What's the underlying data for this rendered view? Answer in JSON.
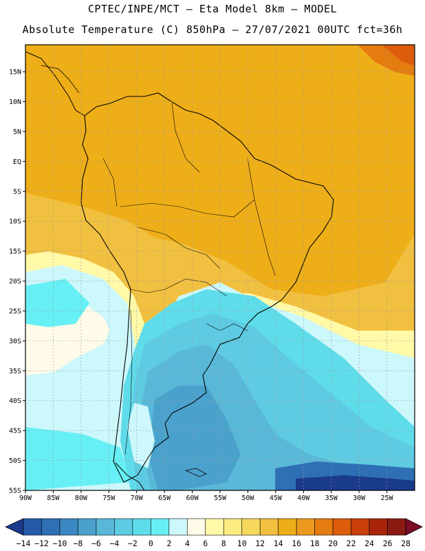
{
  "title": {
    "line1": "CPTEC/INPE/MCT —  Eta Model 8km — MODEL",
    "line2": "Absolute Temperature (C) 850hPa — 27/07/2021 00UTC fct=36h"
  },
  "map_extent": {
    "lon_min": -90,
    "lon_max": -20,
    "lat_min": -55,
    "lat_max": 19.5
  },
  "axes": {
    "lat_ticks": [
      {
        "value": 15,
        "label": "15N"
      },
      {
        "value": 10,
        "label": "10N"
      },
      {
        "value": 5,
        "label": "5N"
      },
      {
        "value": 0,
        "label": "EQ"
      },
      {
        "value": -5,
        "label": "5S"
      },
      {
        "value": -10,
        "label": "10S"
      },
      {
        "value": -15,
        "label": "15S"
      },
      {
        "value": -20,
        "label": "20S"
      },
      {
        "value": -25,
        "label": "25S"
      },
      {
        "value": -30,
        "label": "30S"
      },
      {
        "value": -35,
        "label": "35S"
      },
      {
        "value": -40,
        "label": "40S"
      },
      {
        "value": -45,
        "label": "45S"
      },
      {
        "value": -50,
        "label": "50S"
      },
      {
        "value": -55,
        "label": "55S"
      }
    ],
    "lon_ticks": [
      {
        "value": -90,
        "label": "90W"
      },
      {
        "value": -85,
        "label": "85W"
      },
      {
        "value": -80,
        "label": "80W"
      },
      {
        "value": -75,
        "label": "75W"
      },
      {
        "value": -70,
        "label": "70W"
      },
      {
        "value": -65,
        "label": "65W"
      },
      {
        "value": -60,
        "label": "60W"
      },
      {
        "value": -55,
        "label": "55W"
      },
      {
        "value": -50,
        "label": "50W"
      },
      {
        "value": -45,
        "label": "45W"
      },
      {
        "value": -40,
        "label": "40W"
      },
      {
        "value": -35,
        "label": "35W"
      },
      {
        "value": -30,
        "label": "30W"
      },
      {
        "value": -25,
        "label": "25W"
      }
    ]
  },
  "colorbar": {
    "colors": [
      "#1a3a8c",
      "#245aa8",
      "#2e6fb5",
      "#3a87c2",
      "#4aa2cc",
      "#59b8d8",
      "#5fcbe2",
      "#5fdcea",
      "#66f0f5",
      "#ccf7fb",
      "#fffbe8",
      "#fff9a8",
      "#fbec82",
      "#f6d85c",
      "#f2c040",
      "#eeae18",
      "#eb9a1f",
      "#e57c10",
      "#dd5c0c",
      "#c9400a",
      "#a82408",
      "#8a1a12",
      "#7a0c26"
    ],
    "labels": [
      "-14",
      "-12",
      "-10",
      "-8",
      "-6",
      "-4",
      "-2",
      "0",
      "2",
      "4",
      "6",
      "8",
      "10",
      "12",
      "14",
      "16",
      "18",
      "20",
      "22",
      "24",
      "26",
      "28"
    ]
  }
}
